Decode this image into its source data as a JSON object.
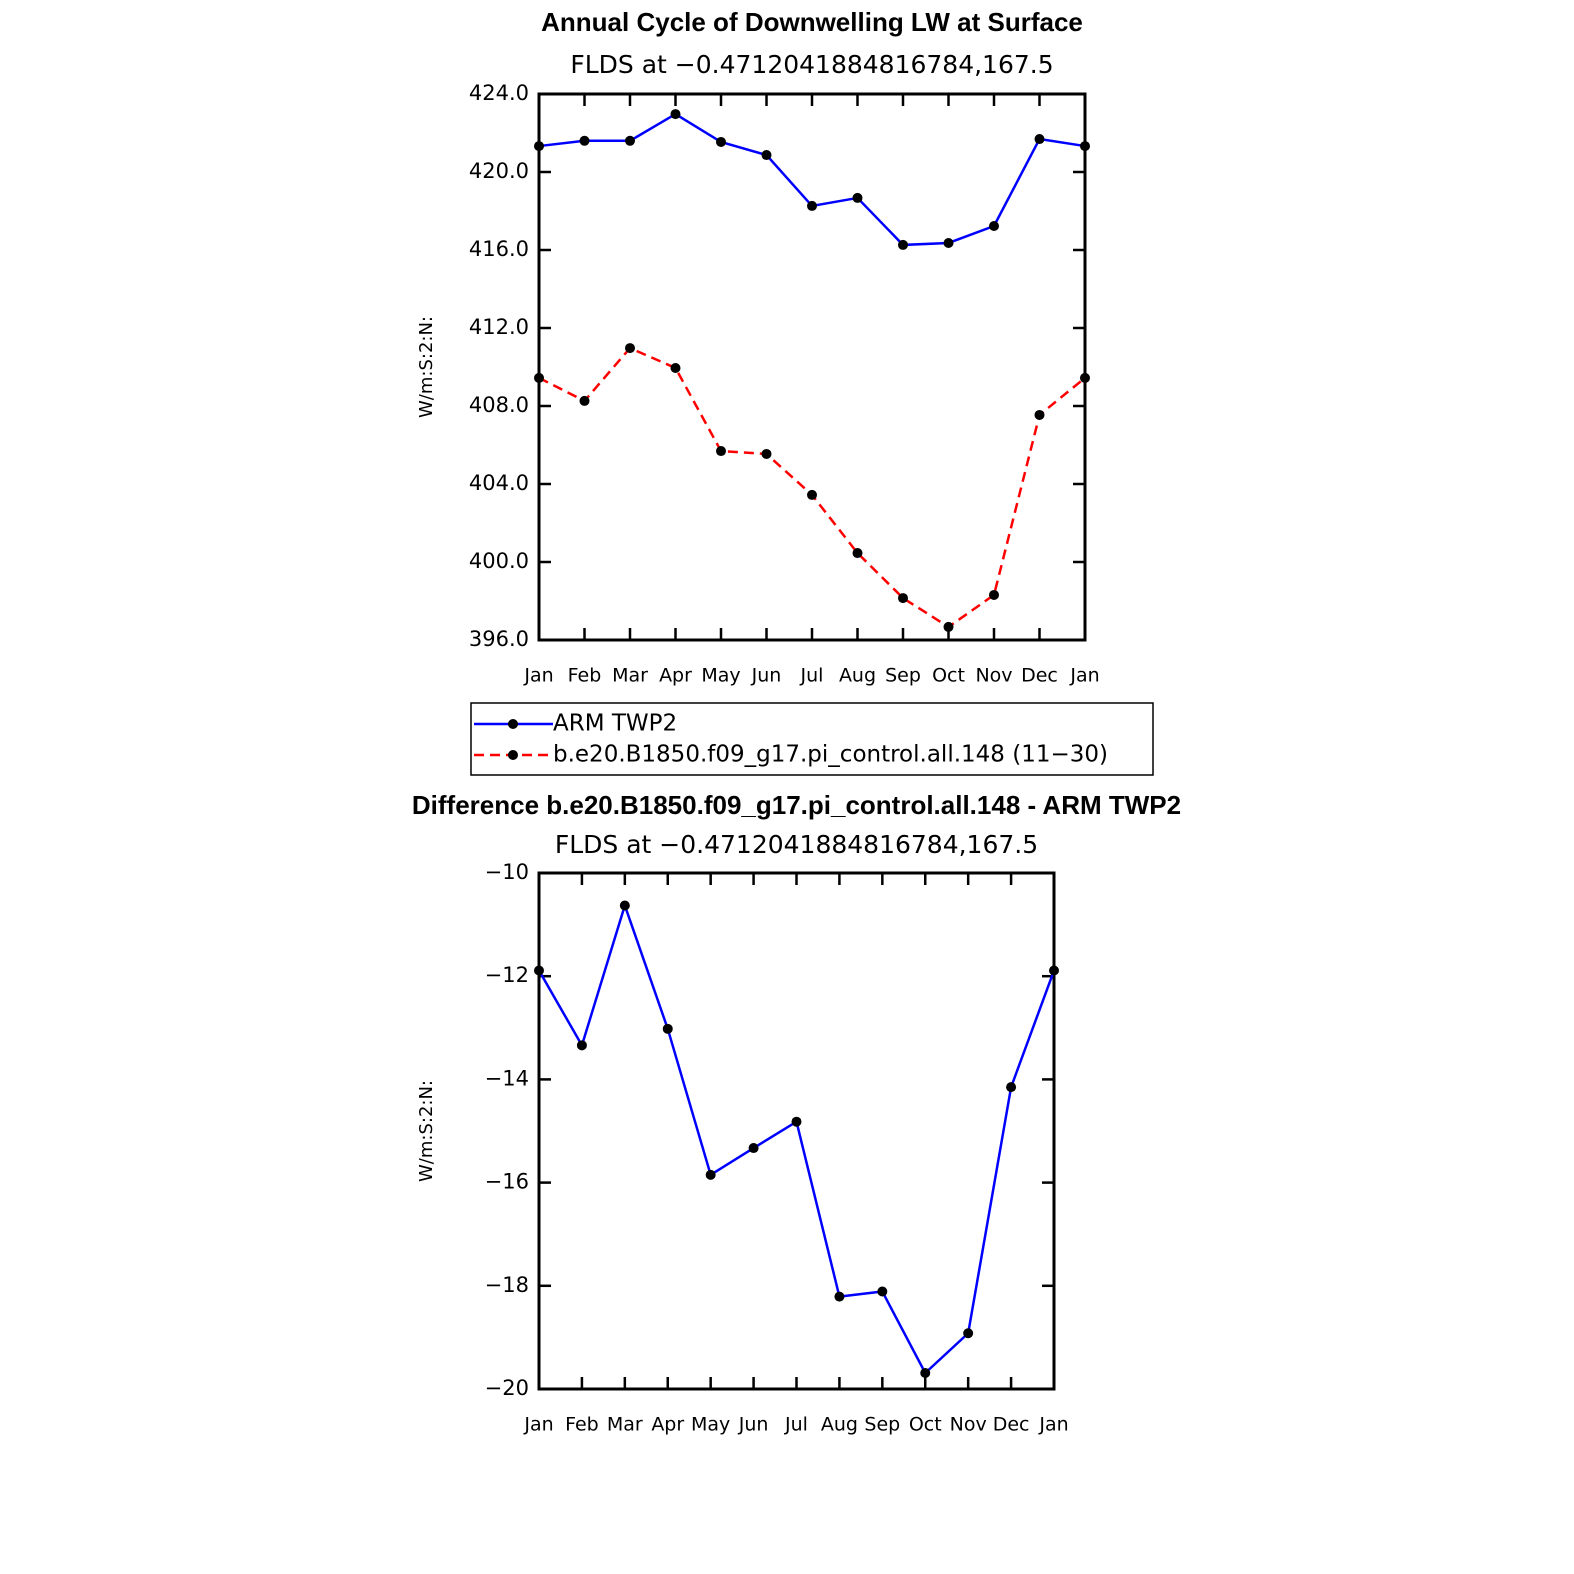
{
  "chart_data": [
    {
      "type": "line",
      "title": "Annual Cycle of Downwelling LW at Surface",
      "subtitle": "FLDS at −0.4712041884816784,167.5",
      "y_label": "W/m:S:2:N:",
      "categories": [
        "Jan",
        "Feb",
        "Mar",
        "Apr",
        "May",
        "Jun",
        "Jul",
        "Aug",
        "Sep",
        "Oct",
        "Nov",
        "Dec",
        "Jan"
      ],
      "series": [
        {
          "name": "ARM TWP2",
          "color": "#0000ff",
          "dashed": false,
          "values": [
            421.33,
            421.6,
            421.6,
            422.97,
            421.54,
            420.87,
            418.26,
            418.67,
            416.26,
            416.36,
            417.23,
            421.69,
            421.33
          ]
        },
        {
          "name": "b.e20.B1850.f09_g17.pi_control.all.148 (11−30)",
          "color": "#ff0000",
          "dashed": true,
          "values": [
            409.44,
            408.26,
            410.97,
            409.95,
            405.69,
            405.54,
            403.44,
            400.46,
            398.15,
            396.67,
            398.31,
            407.54,
            409.44
          ]
        }
      ],
      "ylim": [
        396,
        424
      ],
      "yticks": [
        {
          "value": 396,
          "label": "396.0"
        },
        {
          "value": 400,
          "label": "400.0"
        },
        {
          "value": 404,
          "label": "404.0"
        },
        {
          "value": 408,
          "label": "408.0"
        },
        {
          "value": 412,
          "label": "412.0"
        },
        {
          "value": 416,
          "label": "416.0"
        },
        {
          "value": 420,
          "label": "420.0"
        },
        {
          "value": 424,
          "label": "424.0"
        }
      ],
      "legend": "below"
    },
    {
      "type": "line",
      "title": "Difference b.e20.B1850.f09_g17.pi_control.all.148 - ARM TWP2",
      "subtitle": "FLDS at −0.4712041884816784,167.5",
      "y_label": "W/m:S:2:N:",
      "categories": [
        "Jan",
        "Feb",
        "Mar",
        "Apr",
        "May",
        "Jun",
        "Jul",
        "Aug",
        "Sep",
        "Oct",
        "Nov",
        "Dec",
        "Jan"
      ],
      "series": [
        {
          "color": "#0000ff",
          "dashed": false,
          "values": [
            -11.89,
            -13.34,
            -10.63,
            -13.02,
            -15.85,
            -15.33,
            -14.82,
            -18.21,
            -18.11,
            -19.69,
            -18.92,
            -14.15,
            -11.89
          ]
        }
      ],
      "ylim": [
        -20,
        -10
      ],
      "yticks": [
        {
          "value": -20,
          "label": "−20"
        },
        {
          "value": -18,
          "label": "−18"
        },
        {
          "value": -16,
          "label": "−16"
        },
        {
          "value": -14,
          "label": "−14"
        },
        {
          "value": -12,
          "label": "−12"
        },
        {
          "value": -10,
          "label": "−10"
        }
      ]
    }
  ]
}
